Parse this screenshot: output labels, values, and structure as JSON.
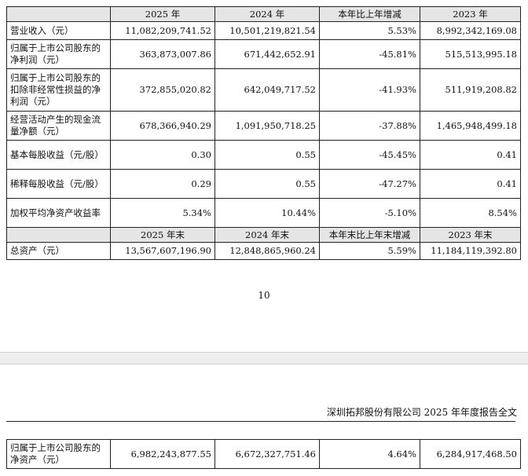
{
  "table1": {
    "header": [
      "",
      "2025 年",
      "2024 年",
      "本年比上年增减",
      "2023 年"
    ],
    "rows": [
      {
        "label": "营业收入（元）",
        "v2025": "11,082,209,741.52",
        "v2024": "10,501,219,821.54",
        "change": "5.53%",
        "v2023": "8,992,342,169.08"
      },
      {
        "label": "归属于上市公司股东的净利润（元）",
        "v2025": "363,873,007.86",
        "v2024": "671,442,652.91",
        "change": "-45.81%",
        "v2023": "515,513,995.18"
      },
      {
        "label": "归属于上市公司股东的扣除非经常性损益的净利润（元）",
        "v2025": "372,855,020.82",
        "v2024": "642,049,717.52",
        "change": "-41.93%",
        "v2023": "511,919,208.82"
      },
      {
        "label": "经营活动产生的现金流量净额（元）",
        "v2025": "678,366,940.29",
        "v2024": "1,091,950,718.25",
        "change": "-37.88%",
        "v2023": "1,465,948,499.18"
      },
      {
        "label": "基本每股收益（元/股）",
        "v2025": "0.30",
        "v2024": "0.55",
        "change": "-45.45%",
        "v2023": "0.41"
      },
      {
        "label": "稀释每股收益（元/股）",
        "v2025": "0.29",
        "v2024": "0.55",
        "change": "-47.27%",
        "v2023": "0.41"
      },
      {
        "label": "加权平均净资产收益率",
        "v2025": "5.34%",
        "v2024": "10.44%",
        "change": "-5.10%",
        "v2023": "8.54%"
      }
    ],
    "header2": [
      "",
      "2025 年末",
      "2024 年末",
      "本年末比上年末增减",
      "2023 年末"
    ],
    "rows2": [
      {
        "label": "总资产（元）",
        "v2025": "13,567,607,196.90",
        "v2024": "12,848,865,960.24",
        "change": "5.59%",
        "v2023": "11,184,119,392.80"
      }
    ]
  },
  "page_number": "10",
  "running_header": "深圳拓邦股份有限公司 2025 年年度报告全文",
  "table2": {
    "rows": [
      {
        "label": "归属于上市公司股东的净资产（元）",
        "v2025": "6,982,243,877.55",
        "v2024": "6,672,327,751.46",
        "change": "4.64%",
        "v2023": "6,284,917,468.50"
      }
    ]
  }
}
